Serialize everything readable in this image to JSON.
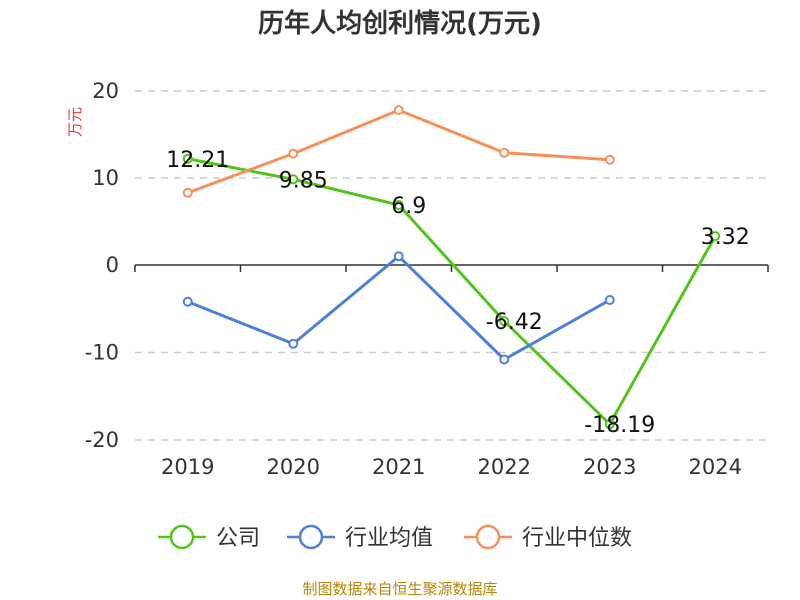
{
  "chart_data": {
    "type": "line",
    "title": "历年人均创利情况(万元)",
    "ylabel": "万元",
    "categories": [
      "2019",
      "2020",
      "2021",
      "2022",
      "2023",
      "2024"
    ],
    "ylim": [
      -20,
      20
    ],
    "yticks": [
      "20",
      "10",
      "0",
      "-10",
      "-20"
    ],
    "grid": "horizontal dashed",
    "legend_position": "bottom",
    "series": [
      {
        "name": "公司",
        "color": "#52c41a",
        "values": [
          12.21,
          9.85,
          6.9,
          -6.42,
          -18.19,
          3.32
        ],
        "labels": [
          "12.21",
          "9.85",
          "6.9",
          "-6.42",
          "-18.19",
          "3.32"
        ]
      },
      {
        "name": "行业均值",
        "color": "#4f7fdc",
        "values": [
          -4.2,
          -9.0,
          1.0,
          -10.8,
          -4.0,
          null
        ]
      },
      {
        "name": "行业中位数",
        "color": "#f6905a",
        "values": [
          8.3,
          12.8,
          17.8,
          12.9,
          12.1,
          null
        ]
      }
    ],
    "source": "制图数据来自恒生聚源数据库"
  }
}
